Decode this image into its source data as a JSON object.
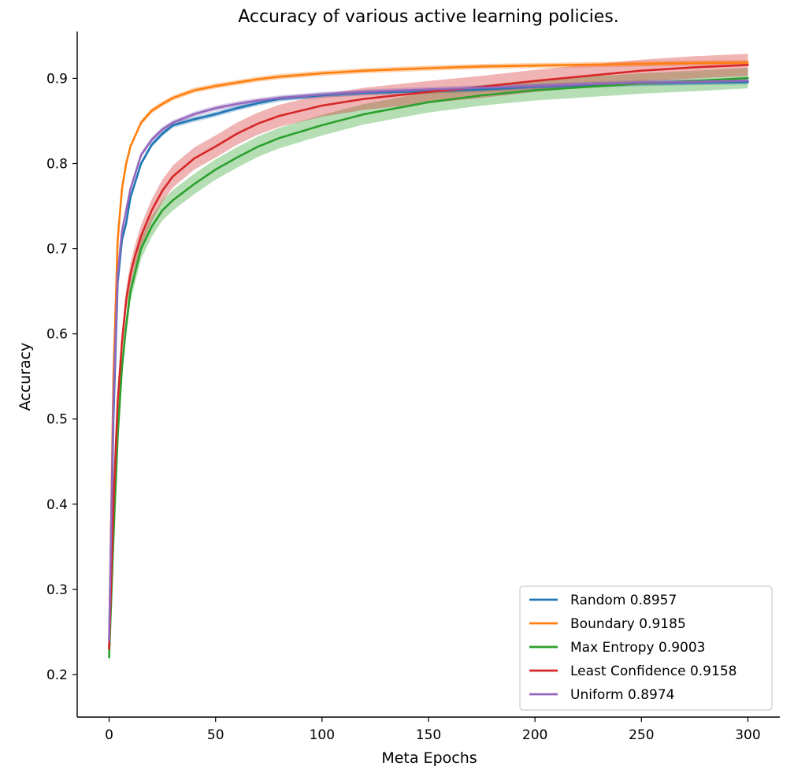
{
  "chart_data": {
    "type": "line",
    "title": "Accuracy of various active learning policies.",
    "xlabel": "Meta Epochs",
    "ylabel": "Accuracy",
    "xlim": [
      -15,
      315
    ],
    "ylim": [
      0.15,
      0.955
    ],
    "xticks": [
      0,
      50,
      100,
      150,
      200,
      250,
      300
    ],
    "yticks": [
      0.2,
      0.3,
      0.4,
      0.5,
      0.6,
      0.7,
      0.8,
      0.9
    ],
    "grid": false,
    "legend_position": "lower-right",
    "series": [
      {
        "name": "Random 0.8957",
        "color": "#1f77b4",
        "x": [
          0,
          2,
          4,
          6,
          8,
          10,
          15,
          20,
          25,
          30,
          40,
          50,
          60,
          70,
          80,
          100,
          120,
          150,
          175,
          200,
          225,
          250,
          275,
          300
        ],
        "y": [
          0.23,
          0.5,
          0.66,
          0.71,
          0.73,
          0.76,
          0.8,
          0.822,
          0.835,
          0.845,
          0.852,
          0.858,
          0.865,
          0.871,
          0.876,
          0.88,
          0.883,
          0.885,
          0.887,
          0.89,
          0.892,
          0.894,
          0.895,
          0.8957
        ],
        "band": 0.003
      },
      {
        "name": "Boundary 0.9185",
        "color": "#ff7f0e",
        "x": [
          0,
          2,
          4,
          6,
          8,
          10,
          15,
          20,
          25,
          30,
          40,
          50,
          60,
          70,
          80,
          100,
          120,
          150,
          175,
          200,
          225,
          250,
          275,
          300
        ],
        "y": [
          0.23,
          0.55,
          0.71,
          0.77,
          0.8,
          0.82,
          0.848,
          0.862,
          0.87,
          0.877,
          0.886,
          0.891,
          0.895,
          0.899,
          0.902,
          0.906,
          0.909,
          0.912,
          0.914,
          0.915,
          0.916,
          0.917,
          0.918,
          0.9185
        ],
        "band": 0.003
      },
      {
        "name": "Max Entropy 0.9003",
        "color": "#2ca02c",
        "x": [
          0,
          2,
          4,
          6,
          8,
          10,
          12,
          15,
          20,
          25,
          30,
          40,
          50,
          60,
          70,
          80,
          100,
          120,
          150,
          175,
          200,
          225,
          250,
          275,
          300
        ],
        "y": [
          0.22,
          0.36,
          0.48,
          0.56,
          0.61,
          0.65,
          0.67,
          0.7,
          0.726,
          0.745,
          0.757,
          0.776,
          0.793,
          0.807,
          0.82,
          0.83,
          0.845,
          0.858,
          0.872,
          0.88,
          0.886,
          0.89,
          0.894,
          0.897,
          0.9003
        ],
        "band": 0.012
      },
      {
        "name": "Least Confidence 0.9158",
        "color": "#d62728",
        "x": [
          0,
          2,
          4,
          6,
          8,
          10,
          12,
          15,
          20,
          25,
          30,
          40,
          50,
          60,
          70,
          80,
          100,
          120,
          150,
          175,
          200,
          225,
          250,
          275,
          300
        ],
        "y": [
          0.23,
          0.4,
          0.52,
          0.59,
          0.64,
          0.67,
          0.69,
          0.715,
          0.745,
          0.768,
          0.785,
          0.806,
          0.82,
          0.835,
          0.847,
          0.856,
          0.868,
          0.876,
          0.884,
          0.89,
          0.897,
          0.903,
          0.909,
          0.913,
          0.9158
        ],
        "band": 0.013
      },
      {
        "name": "Uniform 0.8974",
        "color": "#9467bd",
        "x": [
          0,
          2,
          4,
          6,
          8,
          10,
          15,
          20,
          25,
          30,
          40,
          50,
          60,
          70,
          80,
          100,
          120,
          150,
          175,
          200,
          225,
          250,
          275,
          300
        ],
        "y": [
          0.24,
          0.52,
          0.67,
          0.72,
          0.745,
          0.77,
          0.81,
          0.828,
          0.84,
          0.848,
          0.858,
          0.865,
          0.87,
          0.874,
          0.877,
          0.881,
          0.884,
          0.887,
          0.889,
          0.891,
          0.893,
          0.895,
          0.896,
          0.8974
        ],
        "band": 0.003
      }
    ]
  }
}
